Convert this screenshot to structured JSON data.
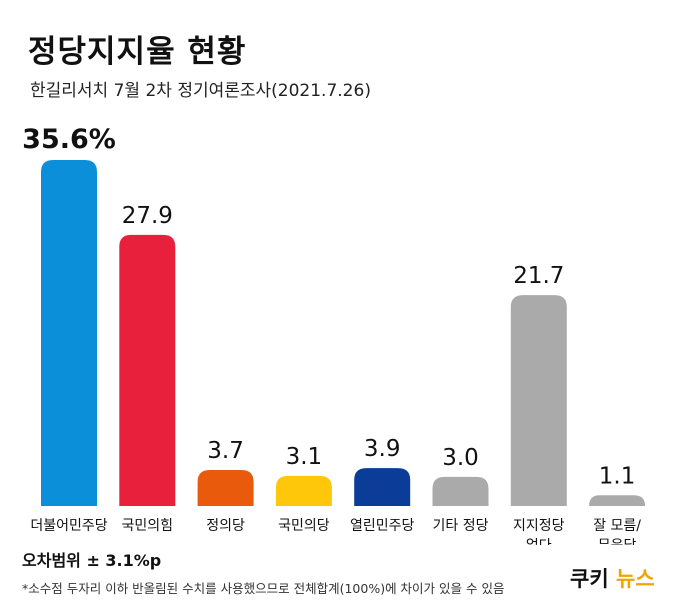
{
  "header": {
    "title": "정당지지율 현황",
    "subtitle": "한길리서치 7월 2차 정기여론조사(2021.7.26)"
  },
  "chart_data": {
    "type": "bar",
    "categories": [
      [
        "더불어민주당"
      ],
      [
        "국민의힘"
      ],
      [
        "정의당"
      ],
      [
        "국민의당"
      ],
      [
        "열린민주당"
      ],
      [
        "기타 정당"
      ],
      [
        "지지정당",
        "없다"
      ],
      [
        "잘 모름/",
        "무응답"
      ]
    ],
    "values": [
      35.6,
      27.9,
      3.7,
      3.1,
      3.9,
      3.0,
      21.7,
      1.1
    ],
    "value_labels": [
      "35.6%",
      "27.9",
      "3.7",
      "3.1",
      "3.9",
      "3.0",
      "21.7",
      "1.1"
    ],
    "colors": [
      "#0b8fd8",
      "#e8203c",
      "#ea5a0c",
      "#ffc70a",
      "#0b3d98",
      "#aaaaaa",
      "#aaaaaa",
      "#aaaaaa"
    ],
    "ylim": [
      0,
      35.6
    ]
  },
  "footer": {
    "margin_of_error": "오차범위 ± 3.1%p",
    "note": "*소수점 두자리 이하 반올림된 수치를 사용했으므로 전체합계(100%)에 차이가 있을 수 있음",
    "logo_text": "쿠키뉴스"
  }
}
